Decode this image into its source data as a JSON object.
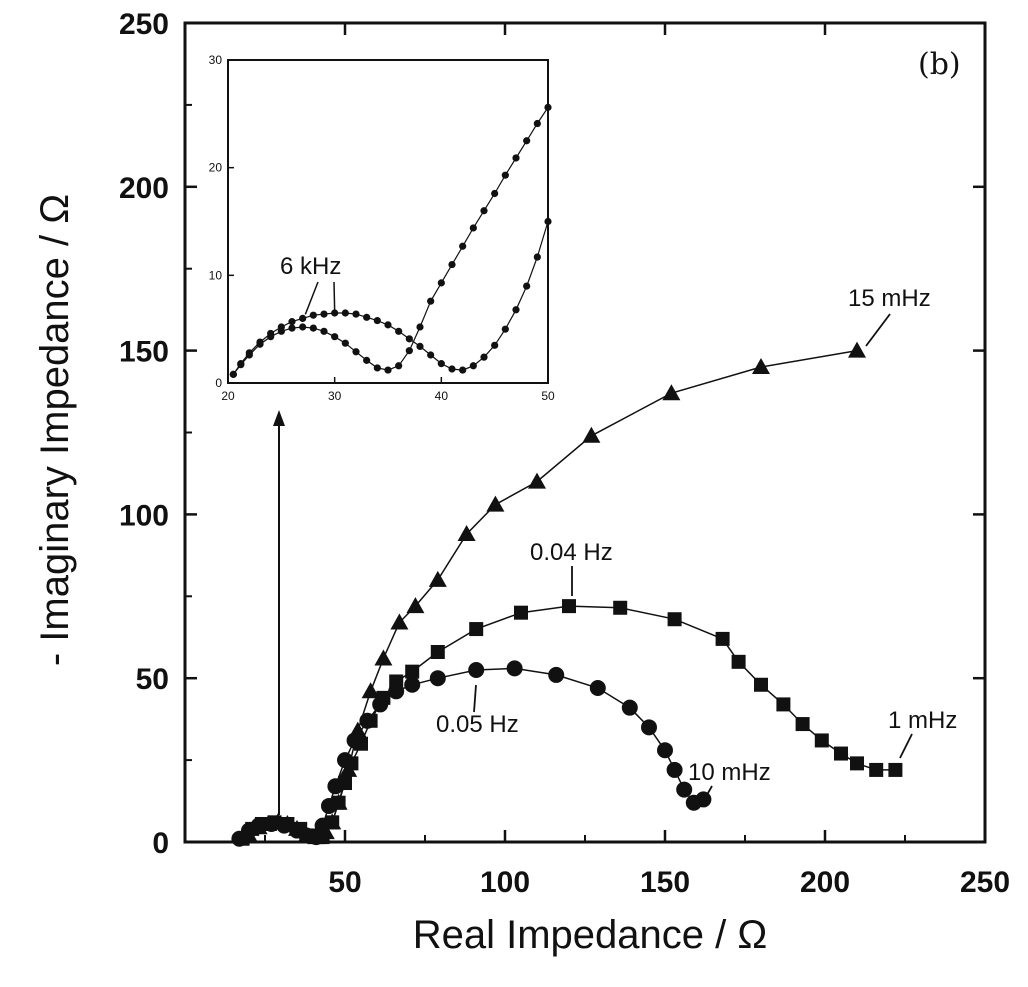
{
  "chart_data": {
    "type": "scatter",
    "panel_label": "(b)",
    "xlabel": "Real   Impedance /  Ω",
    "ylabel": "- Imaginary  Impedance  / Ω",
    "xlim": [
      0,
      250
    ],
    "ylim": [
      0,
      250
    ],
    "x_ticks": [
      50,
      100,
      150,
      200,
      250
    ],
    "y_ticks": [
      0,
      50,
      100,
      150,
      200,
      250
    ],
    "series": [
      {
        "name": "triangles",
        "marker": "triangle",
        "x": [
          20,
          23,
          26,
          29,
          32,
          35,
          38,
          41,
          44,
          46,
          48,
          51,
          54,
          58,
          62,
          67,
          72,
          79,
          88,
          97,
          110,
          127,
          152,
          180,
          210
        ],
        "y": [
          2,
          4.5,
          5.5,
          6,
          5.5,
          4,
          2,
          1.5,
          3,
          6,
          12,
          22,
          34,
          46,
          56,
          67,
          72,
          80,
          94,
          103,
          110,
          124,
          137,
          145,
          150
        ]
      },
      {
        "name": "squares",
        "marker": "square",
        "x": [
          18,
          21,
          24,
          28,
          32,
          36,
          40,
          43,
          46,
          48,
          50,
          52,
          55,
          58,
          62,
          66,
          71,
          79,
          91,
          105,
          120,
          136,
          153,
          168,
          173,
          180,
          187,
          193,
          199,
          205,
          210,
          216,
          222
        ],
        "y": [
          1,
          4,
          5.5,
          6,
          5.5,
          4,
          2,
          1.5,
          6,
          12,
          18,
          24,
          30,
          37,
          44,
          49,
          52,
          58,
          65,
          70,
          72,
          71.5,
          68,
          62,
          55,
          48,
          42,
          36,
          31,
          27,
          24,
          22,
          22
        ]
      },
      {
        "name": "circles",
        "marker": "circle",
        "x": [
          17,
          20,
          23,
          27,
          31,
          35,
          38,
          41,
          43,
          45,
          47,
          50,
          53,
          57,
          61,
          66,
          71,
          79,
          91,
          103,
          116,
          129,
          139,
          145,
          150,
          153,
          156,
          159,
          162
        ],
        "y": [
          1,
          3.5,
          5,
          5.5,
          5,
          3.5,
          2,
          1.5,
          5,
          11,
          17,
          25,
          31,
          37,
          42,
          46,
          48,
          50,
          52.5,
          53,
          51,
          47,
          41,
          35,
          28,
          22,
          16,
          12,
          13
        ]
      }
    ],
    "annotations": [
      {
        "text": "15 mHz",
        "x": 210,
        "y": 150
      },
      {
        "text": "0.04 Hz",
        "x": 120,
        "y": 72
      },
      {
        "text": "0.05 Hz",
        "x": 90,
        "y": 52
      },
      {
        "text": "1 mHz",
        "x": 222,
        "y": 22
      },
      {
        "text": "10 mHz",
        "x": 160,
        "y": 12
      }
    ],
    "inset": {
      "xlim": [
        20,
        50
      ],
      "ylim": [
        0,
        30
      ],
      "x_ticks": [
        20,
        30,
        40,
        50
      ],
      "y_ticks": [
        0,
        10,
        20,
        30
      ],
      "annotation": {
        "text": "6 kHz",
        "x": 28,
        "y": 6
      },
      "series": [
        {
          "name": "left arc",
          "x": [
            20.5,
            21.2,
            22,
            23,
            24,
            25,
            26,
            27,
            28,
            29,
            30,
            31,
            32,
            33,
            34,
            35,
            36,
            37,
            38,
            39,
            40,
            41,
            42,
            43,
            44,
            45,
            46,
            47,
            48,
            49,
            50
          ],
          "y": [
            0.8,
            1.7,
            2.6,
            3.6,
            4.3,
            4.8,
            5.1,
            5.2,
            5.1,
            4.8,
            4.3,
            3.7,
            2.9,
            2.1,
            1.4,
            1.2,
            1.6,
            3,
            5.2,
            7.6,
            9.3,
            11,
            12.7,
            14.4,
            16,
            17.6,
            19.3,
            20.9,
            22.5,
            24.1,
            25.6
          ]
        },
        {
          "name": "right arc",
          "x": [
            20.5,
            21.2,
            22,
            23,
            24,
            25,
            26,
            27,
            28,
            29,
            30,
            31,
            32,
            33,
            34,
            35,
            36,
            37,
            38,
            39,
            40,
            41,
            42,
            43,
            44,
            45,
            46,
            47,
            48,
            49,
            50
          ],
          "y": [
            0.8,
            1.8,
            2.8,
            3.8,
            4.6,
            5.2,
            5.7,
            6,
            6.3,
            6.4,
            6.5,
            6.5,
            6.4,
            6.1,
            5.8,
            5.4,
            4.8,
            4.1,
            3.4,
            2.6,
            1.8,
            1.3,
            1.2,
            1.6,
            2.4,
            3.5,
            5,
            6.8,
            9,
            11.7,
            15
          ]
        }
      ]
    }
  }
}
